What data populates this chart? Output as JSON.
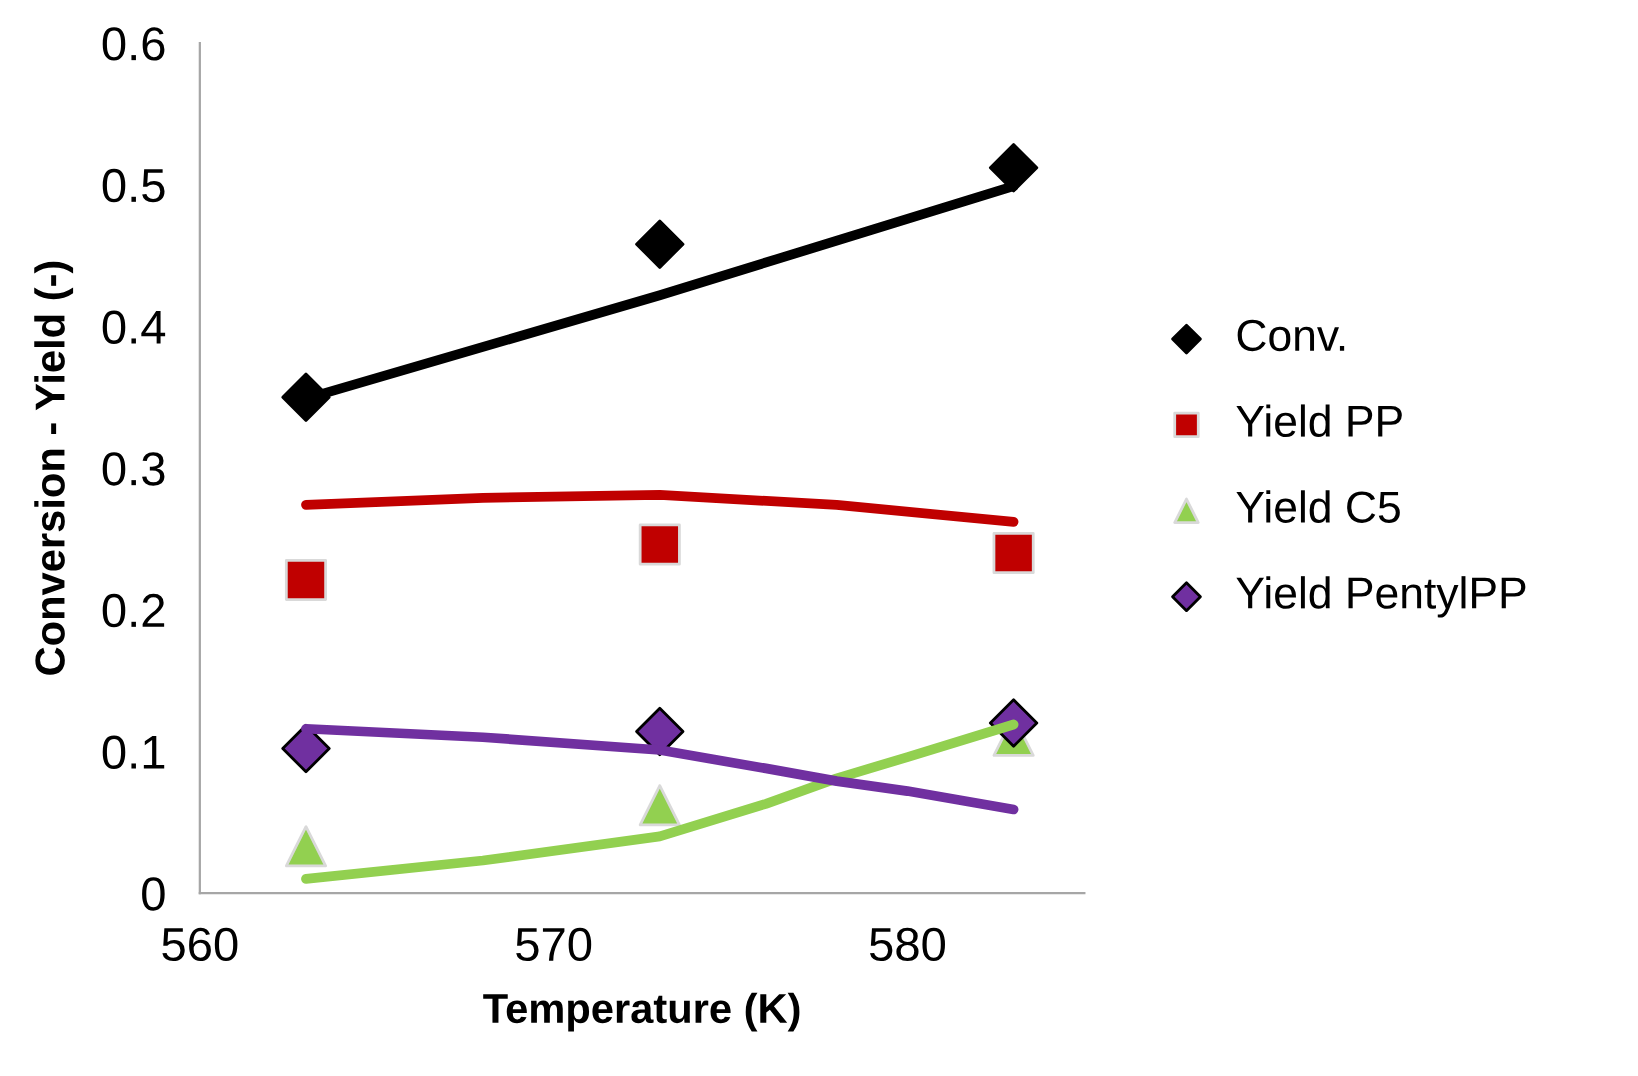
{
  "chart_data": {
    "type": "scatter",
    "xlabel": "Temperature (K)",
    "ylabel": "Conversion - Yield (-)",
    "xlim": [
      560,
      585
    ],
    "xticks": [
      560,
      570,
      580
    ],
    "ylim": [
      0,
      0.6
    ],
    "yticks": [
      0,
      0.1,
      0.2,
      0.3,
      0.4,
      0.5,
      0.6
    ],
    "grid": false,
    "legend": "right",
    "series": [
      {
        "type": "line",
        "color": "#000000",
        "line_style": "solid",
        "marker": "none",
        "x": [
          563,
          573,
          583
        ],
        "values": [
          0.349,
          0.422,
          0.499
        ]
      },
      {
        "type": "line",
        "color": "#c00000",
        "line_style": "solid",
        "marker": "none",
        "x": [
          563,
          568,
          573,
          578,
          583
        ],
        "values": [
          0.274,
          0.279,
          0.281,
          0.274,
          0.262
        ]
      },
      {
        "type": "line",
        "color": "#92d050",
        "line_style": "solid",
        "marker": "none",
        "x": [
          563,
          568,
          573,
          576,
          578,
          580,
          583
        ],
        "values": [
          0.01,
          0.023,
          0.04,
          0.063,
          0.081,
          0.096,
          0.119
        ]
      },
      {
        "type": "line",
        "color": "#7030a0",
        "line_style": "solid",
        "marker": "none",
        "x": [
          563,
          568,
          573,
          576,
          578,
          580,
          583
        ],
        "values": [
          0.116,
          0.11,
          0.101,
          0.088,
          0.079,
          0.072,
          0.059
        ]
      },
      {
        "name": "Conv.",
        "color": "#000000",
        "marker": "diamond",
        "x": [
          563,
          573,
          583
        ],
        "values": [
          0.35,
          0.458,
          0.512
        ]
      },
      {
        "name": "Yield PP",
        "color": "#c00000",
        "marker": "square",
        "x": [
          563,
          573,
          583
        ],
        "values": [
          0.221,
          0.246,
          0.24
        ]
      },
      {
        "name": "Yield C5",
        "color": "#92d050",
        "marker": "triangle",
        "x": [
          563,
          573,
          583
        ],
        "values": [
          0.033,
          0.062,
          0.111
        ]
      },
      {
        "name": "Yield PentylPP",
        "color": "#7030a0",
        "marker": "diamond",
        "x": [
          563,
          573,
          583
        ],
        "values": [
          0.102,
          0.114,
          0.12
        ]
      }
    ]
  }
}
